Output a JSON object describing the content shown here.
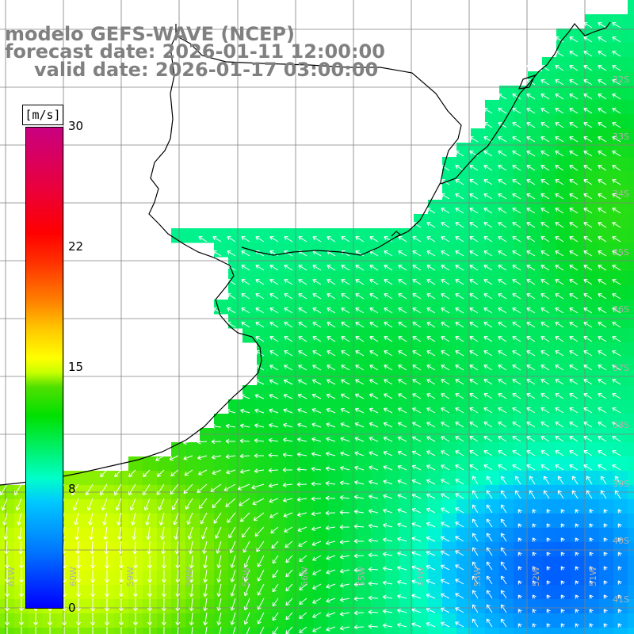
{
  "title": {
    "line1": "modelo GEFS-WAVE (NCEP)",
    "line2": "forecast date: 2026-01-11 12:00:00",
    "line3": "valid date: 2026-01-17 03:00:00"
  },
  "colorbar": {
    "unit": "[m/s]",
    "ticks": [
      "30",
      "22",
      "15",
      "8",
      "0"
    ],
    "colors": [
      "#0000ff",
      "#00c8ff",
      "#00e000",
      "#ffff00",
      "#ff7f00",
      "#ff0000",
      "#c80080"
    ]
  },
  "lat_labels": [
    "32S",
    "33S",
    "34S",
    "35S",
    "36S",
    "37S",
    "38S",
    "39S",
    "40S",
    "41S"
  ],
  "lon_labels": [
    "61W",
    "60W",
    "59W",
    "58W",
    "57W",
    "56W",
    "55W",
    "54W",
    "53W",
    "52W",
    "51W"
  ],
  "map": {
    "land_color": "#ffffff",
    "coastline_color": "#000000",
    "grid_color": "#808080",
    "vector_color": "#ffffff"
  }
}
